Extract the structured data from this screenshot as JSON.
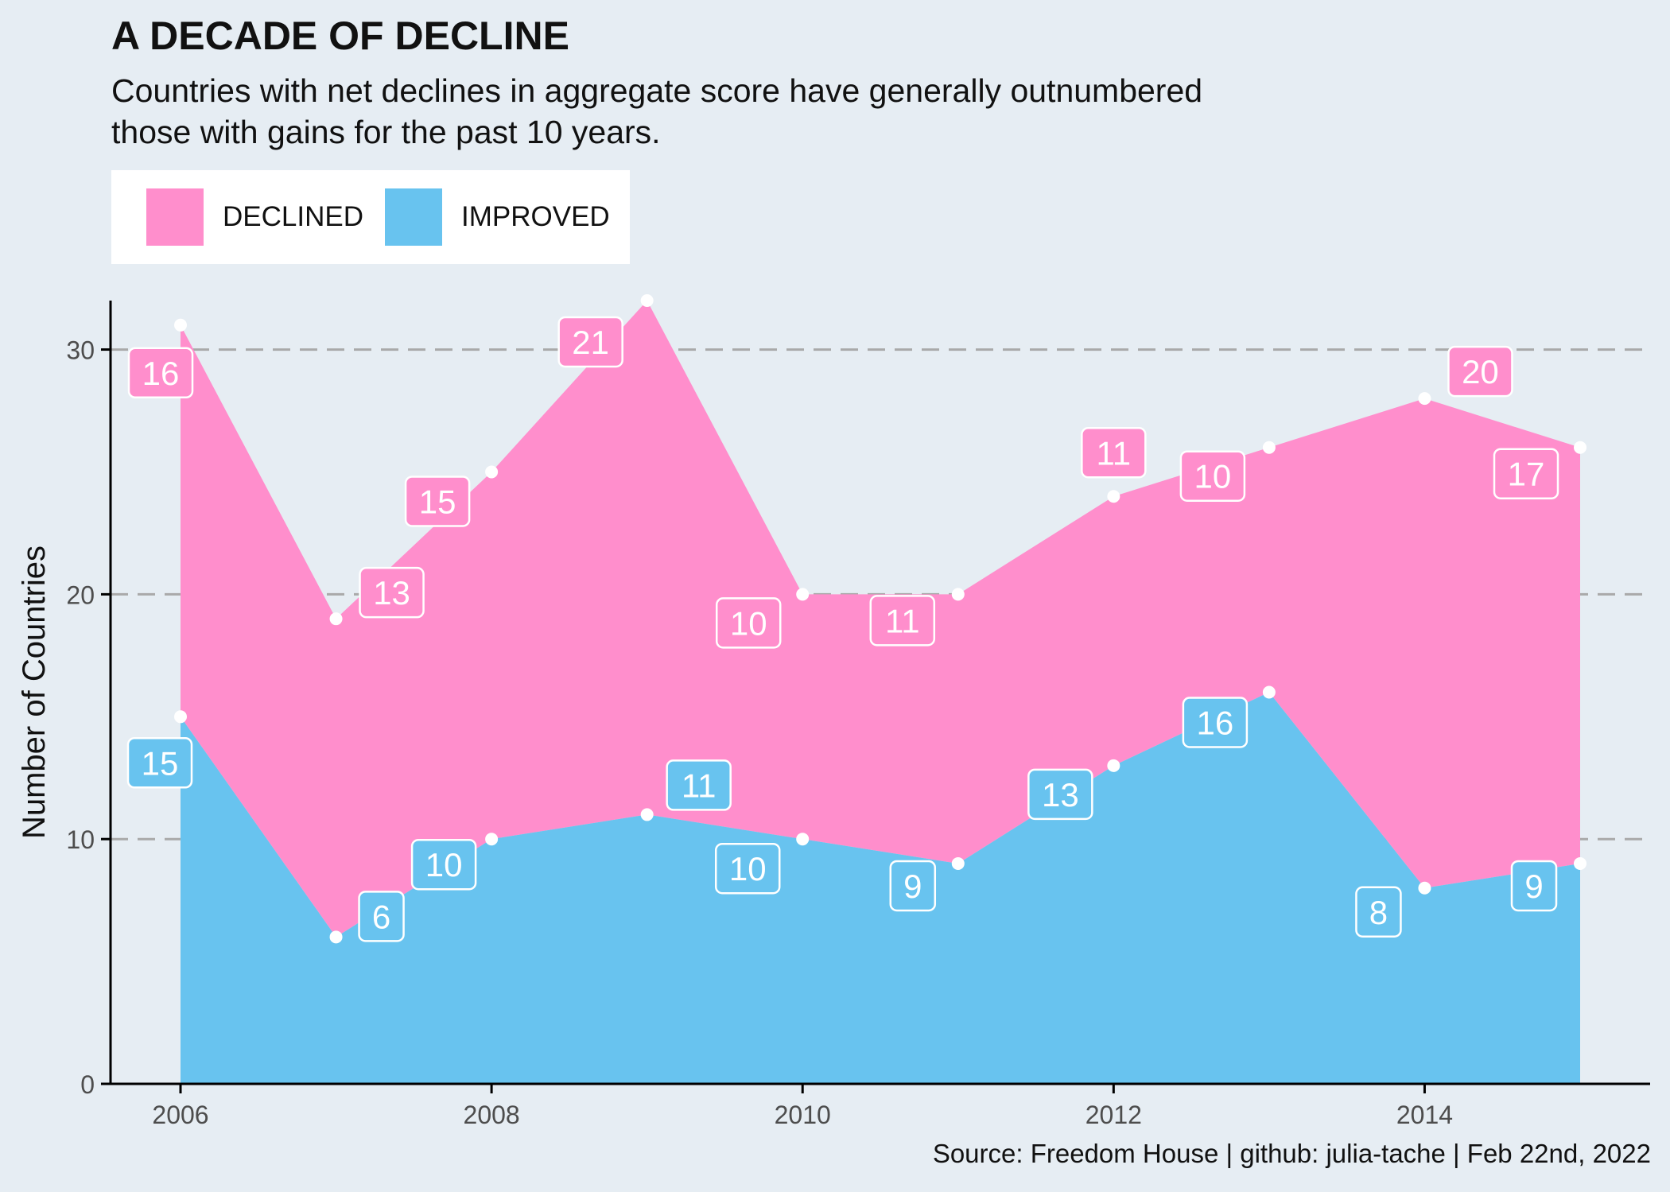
{
  "chart_data": {
    "type": "area",
    "title": "A DECADE OF DECLINE",
    "subtitle": [
      "Countries with net declines in aggregate score have generally outnumbered",
      "those with gains for the past 10 years."
    ],
    "ylabel": "Number of Countries",
    "xlabel": "",
    "x": [
      2006,
      2007,
      2008,
      2009,
      2010,
      2011,
      2012,
      2013,
      2014,
      2015
    ],
    "series": [
      {
        "name": "IMPROVED",
        "values": [
          15,
          6,
          10,
          11,
          10,
          9,
          13,
          16,
          8,
          9
        ]
      },
      {
        "name": "DECLINED",
        "values": [
          16,
          13,
          15,
          21,
          10,
          11,
          11,
          10,
          20,
          17
        ]
      }
    ],
    "stacked": true,
    "xlim": [
      2005.55,
      2015.45
    ],
    "ylim": [
      0,
      32
    ],
    "xticks": [
      2006,
      2008,
      2010,
      2012,
      2014
    ],
    "yticks": [
      0,
      10,
      20,
      30
    ],
    "grid": {
      "horizontal_dashed": true,
      "vertical": false
    },
    "legend_position": "top-left",
    "data_labels": true,
    "caption": "Source: Freedom House | github: julia-tache | Feb 22nd, 2022"
  },
  "colors": {
    "background": "#e6edf3",
    "declined": "#ff8ecc",
    "improved": "#68c3ef",
    "axis": "#000000",
    "grid": "#a9a9a9",
    "point": "#ffffff",
    "tick_text": "#4d4d4d"
  }
}
